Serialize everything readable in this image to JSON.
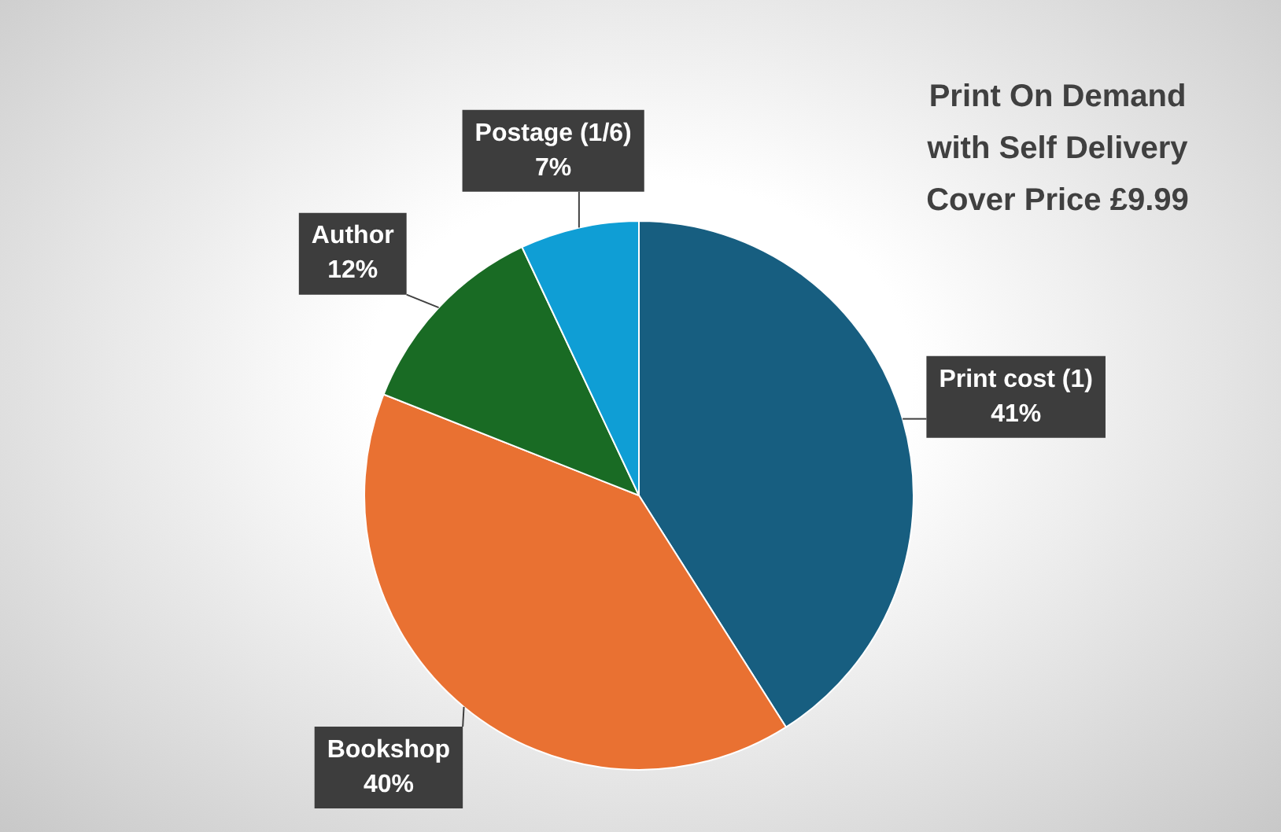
{
  "chart_data": {
    "type": "pie",
    "title": "Print On Demand\nwith Self Delivery\nCover Price £9.99",
    "categories": [
      "Print cost (1)",
      "Bookshop",
      "Author",
      "Postage (1/6)"
    ],
    "values": [
      41,
      40,
      12,
      7
    ],
    "value_labels": [
      "41%",
      "40%",
      "12%",
      "7%"
    ],
    "colors": [
      "#175e80",
      "#e97132",
      "#196b24",
      "#0f9ed5"
    ],
    "legend": false
  }
}
